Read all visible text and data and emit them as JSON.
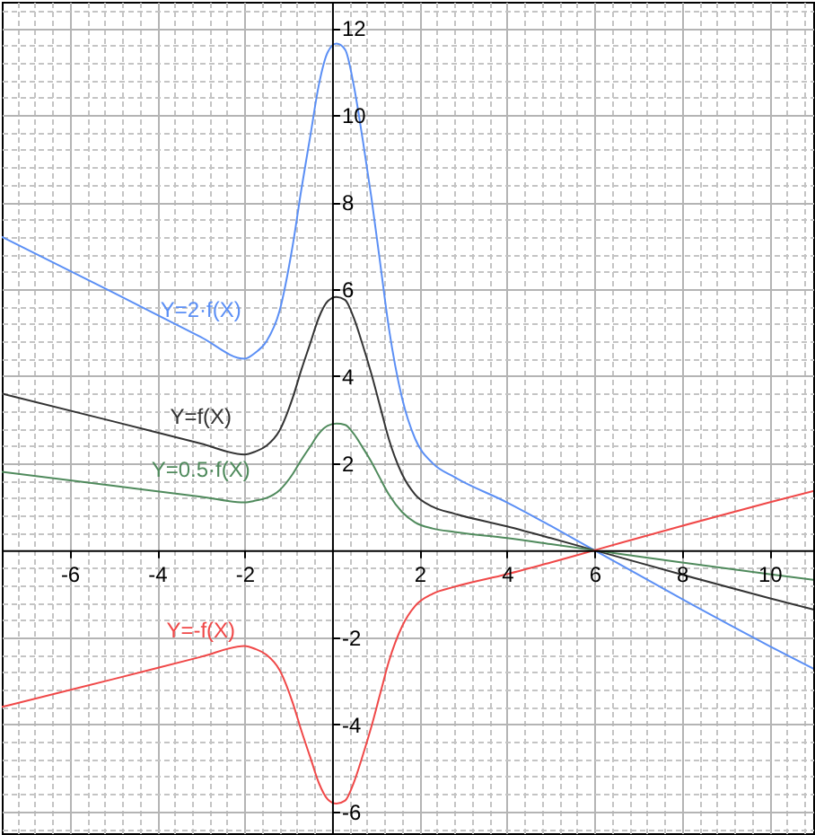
{
  "chart_data": {
    "type": "line",
    "x": [
      -7.55,
      -5,
      -3,
      -2,
      -1.75,
      -1.5,
      -1.2,
      -0.9,
      -0.7,
      -0.5,
      -0.3,
      -0.1,
      0.1,
      0.3,
      0.5,
      0.7,
      0.9,
      1.1,
      1.3,
      1.6,
      1.9,
      2.3,
      2.8,
      4,
      5,
      6,
      8,
      10,
      11
    ],
    "series": [
      {
        "name": "Y=2·f(X)",
        "color": "#5b8ff5",
        "values": [
          7.2,
          5.92,
          4.9,
          4.4,
          4.54,
          4.8,
          5.5,
          7.0,
          8.3,
          9.5,
          10.7,
          11.44,
          11.64,
          11.5,
          10.66,
          9.44,
          8.1,
          6.6,
          5.1,
          3.5,
          2.56,
          2.0,
          1.68,
          1.1,
          0.56,
          0,
          -1.12,
          -2.2,
          -2.72
        ]
      },
      {
        "name": "Y=f(X)",
        "color": "#333333",
        "values": [
          3.6,
          2.96,
          2.45,
          2.2,
          2.27,
          2.4,
          2.75,
          3.5,
          4.15,
          4.75,
          5.35,
          5.72,
          5.82,
          5.75,
          5.33,
          4.72,
          4.05,
          3.3,
          2.55,
          1.75,
          1.28,
          1.0,
          0.84,
          0.55,
          0.28,
          0,
          -0.56,
          -1.1,
          -1.36
        ]
      },
      {
        "name": "Y=0.5·f(X)",
        "color": "#4f8a5c",
        "values": [
          1.8,
          1.48,
          1.23,
          1.1,
          1.14,
          1.2,
          1.38,
          1.75,
          2.08,
          2.38,
          2.68,
          2.86,
          2.91,
          2.88,
          2.67,
          2.36,
          2.03,
          1.65,
          1.28,
          0.88,
          0.64,
          0.5,
          0.42,
          0.28,
          0.14,
          0,
          -0.28,
          -0.55,
          -0.68
        ]
      },
      {
        "name": "Y=-f(X)",
        "color": "#f04848",
        "values": [
          -3.6,
          -2.96,
          -2.45,
          -2.2,
          -2.27,
          -2.4,
          -2.75,
          -3.5,
          -4.15,
          -4.75,
          -5.35,
          -5.72,
          -5.82,
          -5.75,
          -5.33,
          -4.72,
          -4.05,
          -3.3,
          -2.55,
          -1.75,
          -1.28,
          -1.0,
          -0.84,
          -0.55,
          -0.28,
          0,
          0.56,
          1.1,
          1.36
        ]
      }
    ],
    "xlim": [
      -7.55,
      11.0
    ],
    "ylim": [
      -6.5,
      12.6
    ],
    "xticks": [
      -6,
      -4,
      -2,
      2,
      4,
      6,
      8,
      10
    ],
    "yticks": [
      -6,
      -4,
      -2,
      2,
      4,
      6,
      8,
      10,
      12
    ],
    "grid": true
  }
}
